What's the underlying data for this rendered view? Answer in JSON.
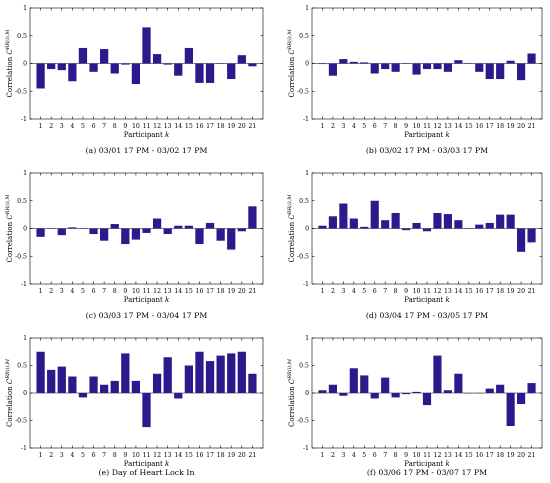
{
  "chart_data": [
    {
      "type": "bar",
      "caption": "(a)  03/01 17 PM - 03/02 17 PM",
      "xlabel": "Participant k",
      "ylabel": "Correlation C^{RR^{(i)},M}",
      "ylim": [
        -1,
        1
      ],
      "yticks": [
        "-1",
        "-0.5",
        "0",
        "0.5",
        "1"
      ],
      "categories": [
        "1",
        "2",
        "3",
        "4",
        "5",
        "6",
        "7",
        "8",
        "9",
        "10",
        "11",
        "12",
        "13",
        "14",
        "15",
        "16",
        "17",
        "18",
        "19",
        "20",
        "21"
      ],
      "values": [
        -0.45,
        -0.1,
        -0.12,
        -0.32,
        0.28,
        -0.15,
        0.26,
        -0.18,
        -0.02,
        -0.37,
        0.65,
        0.17,
        -0.02,
        -0.22,
        0.28,
        -0.35,
        -0.35,
        0.0,
        -0.28,
        0.15,
        -0.05
      ],
      "bar_color": "#2b1a8c"
    },
    {
      "type": "bar",
      "caption": "(b)  03/02 17 PM - 03/03 17 PM",
      "xlabel": "Participant k",
      "ylabel": "Correlation C^{RR^{(i)},M}",
      "ylim": [
        -1,
        1
      ],
      "yticks": [
        "-1",
        "-0.5",
        "0",
        "0.5",
        "1"
      ],
      "categories": [
        "1",
        "2",
        "3",
        "4",
        "5",
        "6",
        "7",
        "8",
        "9",
        "10",
        "11",
        "12",
        "13",
        "14",
        "15",
        "16",
        "17",
        "18",
        "19",
        "20",
        "21"
      ],
      "values": [
        -0.01,
        -0.22,
        0.08,
        0.03,
        0.02,
        -0.18,
        -0.1,
        -0.15,
        0.0,
        -0.2,
        -0.1,
        -0.1,
        -0.15,
        0.06,
        0.0,
        -0.15,
        -0.28,
        -0.28,
        0.05,
        -0.3,
        0.18
      ],
      "bar_color": "#2b1a8c"
    },
    {
      "type": "bar",
      "caption": "(c)  03/03 17 PM - 03/04 17 PM",
      "xlabel": "Participant k",
      "ylabel": "Correlation C^{RR^{(i)},M}",
      "ylim": [
        -1,
        1
      ],
      "yticks": [
        "-1",
        "-0.5",
        "0",
        "0.5",
        "1"
      ],
      "categories": [
        "1",
        "2",
        "3",
        "4",
        "5",
        "6",
        "7",
        "8",
        "9",
        "10",
        "11",
        "12",
        "13",
        "14",
        "15",
        "16",
        "17",
        "18",
        "19",
        "20",
        "21"
      ],
      "values": [
        -0.15,
        0.0,
        -0.12,
        0.02,
        0.0,
        -0.1,
        -0.22,
        0.08,
        -0.28,
        -0.2,
        -0.08,
        0.18,
        -0.1,
        0.05,
        0.05,
        -0.28,
        0.1,
        -0.22,
        -0.38,
        -0.05,
        0.4
      ],
      "bar_color": "#2b1a8c"
    },
    {
      "type": "bar",
      "caption": "(d)  03/04 17 PM - 03/05 17 PM",
      "xlabel": "Participant k",
      "ylabel": "Correlation C^{RR^{(i)},M}",
      "ylim": [
        -1,
        1
      ],
      "yticks": [
        "-1",
        "-0.5",
        "0",
        "0.5",
        "1"
      ],
      "categories": [
        "1",
        "2",
        "3",
        "4",
        "5",
        "6",
        "7",
        "8",
        "9",
        "10",
        "11",
        "12",
        "13",
        "14",
        "15",
        "16",
        "17",
        "18",
        "19",
        "20",
        "21"
      ],
      "values": [
        0.05,
        0.22,
        0.45,
        0.18,
        0.03,
        0.5,
        0.15,
        0.28,
        -0.03,
        0.1,
        -0.05,
        0.28,
        0.26,
        0.15,
        0.0,
        0.07,
        0.1,
        0.25,
        0.25,
        -0.42,
        -0.25
      ],
      "bar_color": "#2b1a8c"
    },
    {
      "type": "bar",
      "caption": "(e) Day of Heart Lock In",
      "xlabel": "Participant k",
      "ylabel": "Correlation C^{RR^{(i)},M}",
      "ylim": [
        -1,
        1
      ],
      "yticks": [
        "-1",
        "-0.5",
        "0",
        "0.5",
        "1"
      ],
      "categories": [
        "1",
        "2",
        "3",
        "4",
        "5",
        "6",
        "7",
        "8",
        "9",
        "10",
        "11",
        "12",
        "13",
        "14",
        "15",
        "16",
        "17",
        "18",
        "19",
        "20",
        "21"
      ],
      "values": [
        0.75,
        0.42,
        0.48,
        0.3,
        -0.08,
        0.3,
        0.15,
        0.22,
        0.72,
        0.22,
        -0.62,
        0.35,
        0.65,
        -0.1,
        0.5,
        0.75,
        0.58,
        0.68,
        0.72,
        0.75,
        0.35
      ],
      "bar_color": "#2b1a8c"
    },
    {
      "type": "bar",
      "caption": "(f)  03/06 17 PM - 03/07 17 PM",
      "xlabel": "Participant k",
      "ylabel": "Correlation C^{RR^{(i)},M}",
      "ylim": [
        -1,
        1
      ],
      "yticks": [
        "-1",
        "-0.5",
        "0",
        "0.5",
        "1"
      ],
      "categories": [
        "1",
        "2",
        "3",
        "4",
        "5",
        "6",
        "7",
        "8",
        "9",
        "10",
        "11",
        "12",
        "13",
        "14",
        "15",
        "16",
        "17",
        "18",
        "19",
        "20",
        "21"
      ],
      "values": [
        0.05,
        0.15,
        -0.05,
        0.45,
        0.32,
        -0.1,
        0.28,
        -0.08,
        -0.02,
        0.02,
        -0.22,
        0.68,
        0.05,
        0.35,
        0.0,
        0.0,
        0.08,
        0.15,
        -0.6,
        -0.2,
        0.18
      ],
      "bar_color": "#2b1a8c"
    }
  ]
}
